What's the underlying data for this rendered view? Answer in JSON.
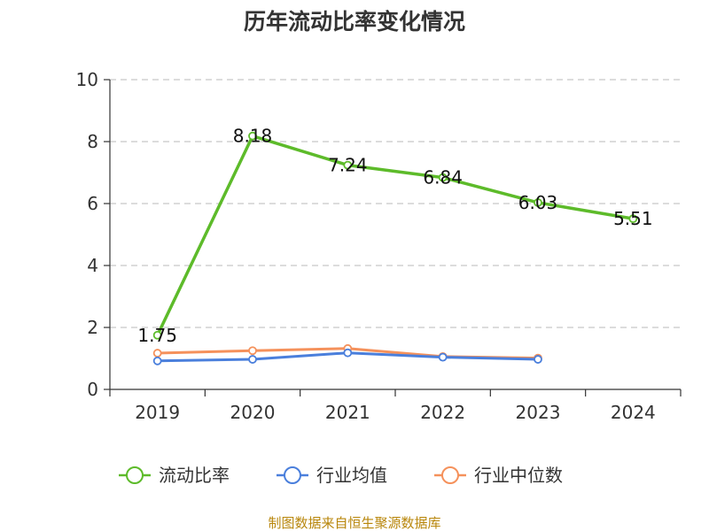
{
  "chart_data": {
    "type": "line",
    "title": "历年流动比率变化情况",
    "categories": [
      "2019",
      "2020",
      "2021",
      "2022",
      "2023",
      "2024"
    ],
    "ylim": [
      0,
      10
    ],
    "yticks": [
      0,
      2,
      4,
      6,
      8,
      10
    ],
    "grid": true,
    "legend_position": "bottom",
    "series": [
      {
        "name": "流动比率",
        "color": "#5dbb2a",
        "values": [
          1.75,
          8.18,
          7.24,
          6.84,
          6.03,
          5.51
        ],
        "labels": [
          "1.75",
          "8.18",
          "7.24",
          "6.84",
          "6.03",
          "5.51"
        ],
        "show_labels": true
      },
      {
        "name": "行业均值",
        "color": "#4a7fdc",
        "values": [
          0.92,
          0.97,
          1.18,
          1.04,
          0.97,
          null
        ],
        "show_labels": false
      },
      {
        "name": "行业中位数",
        "color": "#f5915b",
        "values": [
          1.17,
          1.25,
          1.32,
          1.06,
          1.01,
          null
        ],
        "show_labels": false
      }
    ],
    "source": "制图数据来自恒生聚源数据库"
  }
}
